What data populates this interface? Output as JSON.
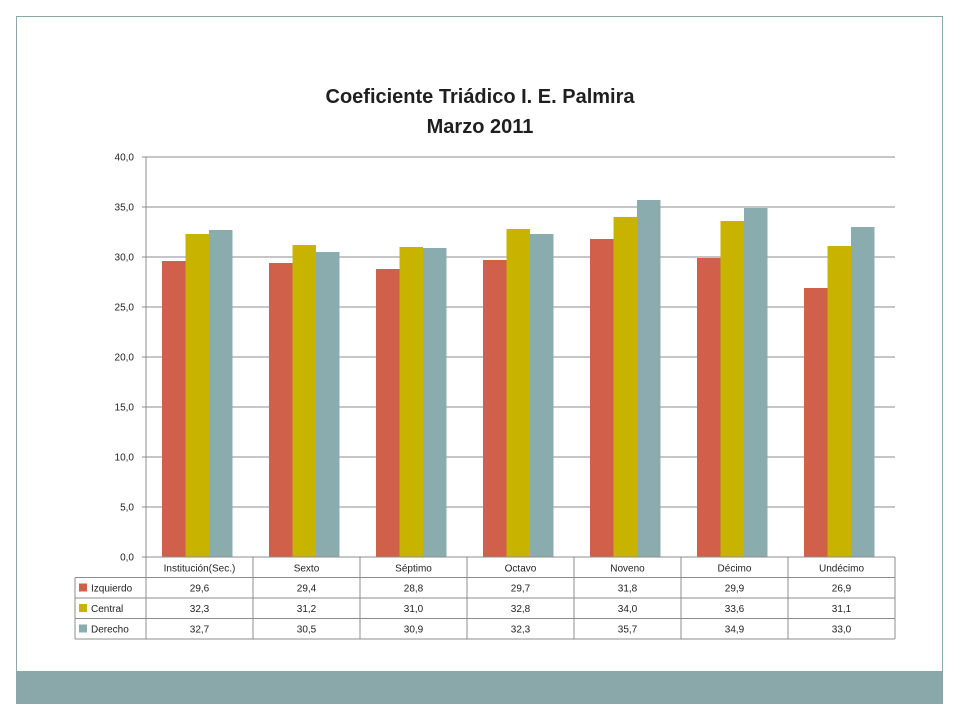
{
  "colors": {
    "frame": "#8aa8aa",
    "footer_bar": "#8aa8aa"
  },
  "chart_data": {
    "type": "bar",
    "title": "Coeficiente Triádico I. E. Palmira",
    "subtitle": "Marzo 2011",
    "categories": [
      "Institución(Sec.)",
      "Sexto",
      "Séptimo",
      "Octavo",
      "Noveno",
      "Décimo",
      "Undécimo"
    ],
    "series": [
      {
        "name": "Izquierdo",
        "color": "#d0604a",
        "values": [
          29.6,
          29.4,
          28.8,
          29.7,
          31.8,
          29.9,
          26.9
        ]
      },
      {
        "name": "Central",
        "color": "#c8b400",
        "values": [
          32.3,
          31.2,
          31.0,
          32.8,
          34.0,
          33.6,
          31.1
        ]
      },
      {
        "name": "Derecho",
        "color": "#8aacaf",
        "values": [
          32.7,
          30.5,
          30.9,
          32.3,
          35.7,
          34.9,
          33.0
        ]
      }
    ],
    "ylim": [
      0,
      40
    ],
    "yticks": [
      "0,0",
      "5,0",
      "10,0",
      "15,0",
      "20,0",
      "25,0",
      "30,0",
      "35,0",
      "40,0"
    ],
    "grid": true,
    "legend": "data-table"
  }
}
